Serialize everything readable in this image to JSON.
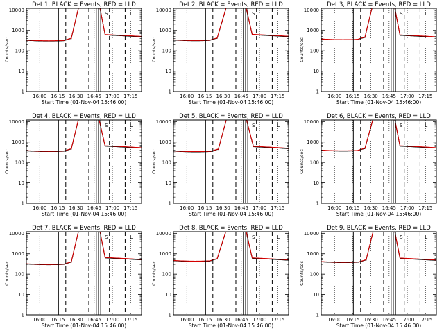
{
  "chart_data": {
    "type": "line",
    "layout": "3x3 grid",
    "x_axis": {
      "label": "Start Time (01-Nov-04 15:46:00)",
      "tick_labels": [
        "16:00",
        "16:15",
        "16:30",
        "16:45",
        "17:00",
        "17:15"
      ],
      "ticks_min": [
        16.0,
        31.0,
        46.0,
        61.0,
        76.0,
        91.0
      ],
      "range_min": [
        5,
        100
      ]
    },
    "y_axis": {
      "label": "Counts/sec",
      "scale": "log",
      "range": [
        1,
        12000
      ],
      "tick_labels": [
        "1",
        "10",
        "100",
        "1000",
        "10000"
      ]
    },
    "grid": "dotted vertical lines at x ticks",
    "colors": {
      "events": "#000000",
      "lld": "#d40000"
    },
    "markers": {
      "solid_min": [
        31.5,
        62.7,
        64.5,
        66.3
      ],
      "dashed_min": [
        37.5,
        56.5,
        73.5,
        86.5
      ],
      "annotations": [
        {
          "text": "S",
          "x_min": 71.0
        },
        {
          "text": "L",
          "x_min": 91.5
        }
      ]
    },
    "panels": [
      {
        "title": "Det 1, BLACK = Events, RED = LLD",
        "base": 300,
        "rise_start": 42,
        "rise_end": 50,
        "fall_start": 64,
        "fall_end": 70,
        "level_after": 480
      },
      {
        "title": "Det 2, BLACK = Events, RED = LLD",
        "base": 310,
        "rise_start": 41,
        "rise_end": 51,
        "fall_start": 63,
        "fall_end": 70,
        "level_after": 490
      },
      {
        "title": "Det 3, BLACK = Events, RED = LLD",
        "base": 340,
        "rise_start": 41,
        "rise_end": 49,
        "fall_start": 64,
        "fall_end": 70,
        "level_after": 460
      },
      {
        "title": "Det 4, BLACK = Events, RED = LLD",
        "base": 340,
        "rise_start": 42,
        "rise_end": 50,
        "fall_start": 63,
        "fall_end": 70,
        "level_after": 500
      },
      {
        "title": "Det 5, BLACK = Events, RED = LLD",
        "base": 330,
        "rise_start": 42,
        "rise_end": 51,
        "fall_start": 63,
        "fall_end": 71,
        "level_after": 470
      },
      {
        "title": "Det 6, BLACK = Events, RED = LLD",
        "base": 360,
        "rise_start": 41,
        "rise_end": 50,
        "fall_start": 64,
        "fall_end": 70,
        "level_after": 500
      },
      {
        "title": "Det 7, BLACK = Events, RED = LLD",
        "base": 290,
        "rise_start": 42,
        "rise_end": 50,
        "fall_start": 64,
        "fall_end": 70,
        "level_after": 500
      },
      {
        "title": "Det 8, BLACK = Events, RED = LLD",
        "base": 420,
        "rise_start": 41,
        "rise_end": 51,
        "fall_start": 63,
        "fall_end": 70,
        "level_after": 480
      },
      {
        "title": "Det 9, BLACK = Events, RED = LLD",
        "base": 370,
        "rise_start": 42,
        "rise_end": 50,
        "fall_start": 64,
        "fall_end": 70,
        "level_after": 470
      }
    ]
  }
}
